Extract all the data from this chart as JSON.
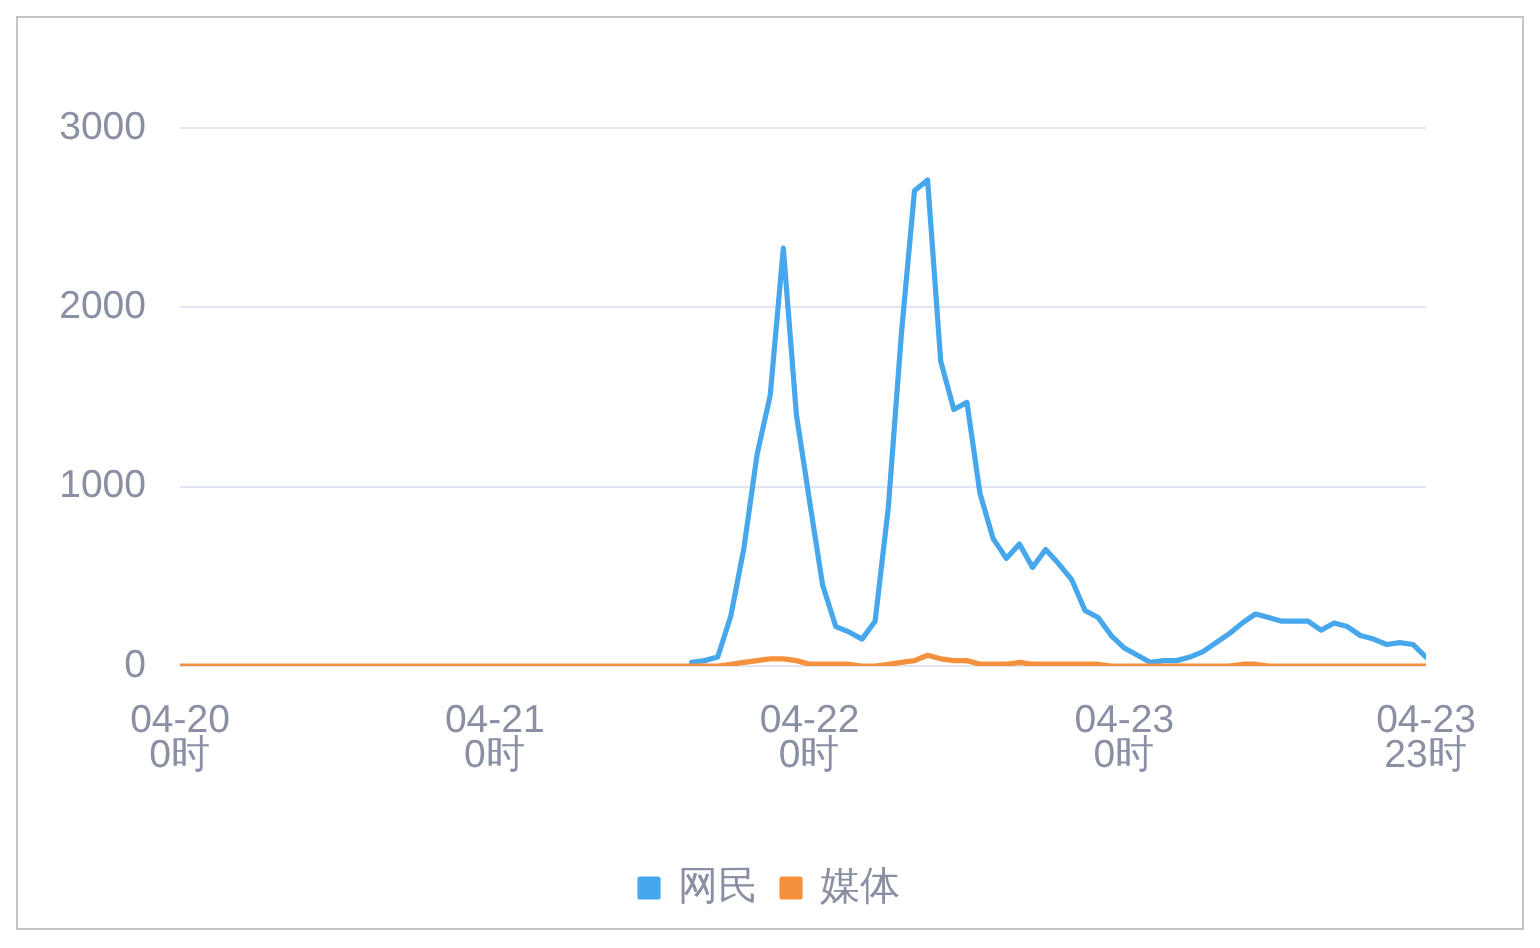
{
  "chart_data": {
    "type": "line",
    "categories": [
      "04-20\n0时",
      null,
      null,
      null,
      null,
      null,
      null,
      null,
      null,
      null,
      null,
      null,
      null,
      null,
      null,
      null,
      null,
      null,
      null,
      null,
      null,
      null,
      null,
      null,
      "04-21\n0时",
      null,
      null,
      null,
      null,
      null,
      null,
      null,
      null,
      null,
      null,
      null,
      null,
      null,
      null,
      null,
      null,
      null,
      null,
      null,
      null,
      null,
      null,
      null,
      "04-22\n0时",
      null,
      null,
      null,
      null,
      null,
      null,
      null,
      null,
      null,
      null,
      null,
      null,
      null,
      null,
      null,
      null,
      null,
      null,
      null,
      null,
      null,
      null,
      null,
      "04-23\n0时",
      null,
      null,
      null,
      null,
      null,
      null,
      null,
      null,
      null,
      null,
      null,
      null,
      null,
      null,
      null,
      null,
      null,
      null,
      null,
      null,
      null,
      null,
      "04-23\n23时"
    ],
    "series": [
      {
        "name": "网民",
        "color": "#46a7ec",
        "values": [
          null,
          null,
          null,
          null,
          null,
          null,
          null,
          null,
          null,
          null,
          null,
          null,
          null,
          null,
          null,
          null,
          null,
          null,
          null,
          null,
          null,
          null,
          null,
          null,
          null,
          null,
          null,
          null,
          null,
          null,
          null,
          null,
          null,
          null,
          null,
          null,
          null,
          null,
          null,
          20,
          30,
          50,
          280,
          660,
          1180,
          1510,
          2330,
          1400,
          920,
          450,
          220,
          190,
          150,
          250,
          880,
          1850,
          2650,
          2710,
          1700,
          1430,
          1470,
          960,
          710,
          600,
          680,
          550,
          650,
          570,
          480,
          310,
          270,
          170,
          100,
          60,
          20,
          30,
          30,
          50,
          80,
          130,
          180,
          240,
          290,
          270,
          250,
          250,
          250,
          200,
          240,
          220,
          170,
          150,
          120,
          130,
          120,
          50
        ]
      },
      {
        "name": "媒体",
        "color": "#f5913c",
        "values": [
          0,
          0,
          0,
          0,
          0,
          0,
          0,
          0,
          0,
          0,
          0,
          0,
          0,
          0,
          0,
          0,
          0,
          0,
          0,
          0,
          0,
          0,
          0,
          0,
          0,
          0,
          0,
          0,
          0,
          0,
          0,
          0,
          0,
          0,
          0,
          0,
          0,
          0,
          0,
          0,
          0,
          0,
          10,
          20,
          30,
          40,
          40,
          30,
          10,
          10,
          10,
          10,
          0,
          0,
          10,
          20,
          30,
          60,
          40,
          30,
          30,
          10,
          10,
          10,
          20,
          10,
          10,
          10,
          10,
          10,
          10,
          0,
          0,
          0,
          0,
          0,
          0,
          0,
          0,
          0,
          0,
          10,
          10,
          0,
          0,
          0,
          0,
          0,
          0,
          0,
          0,
          0,
          0,
          0,
          0,
          0
        ]
      }
    ],
    "ylim": [
      0,
      3000
    ],
    "yticks": [
      0,
      1000,
      2000,
      3000
    ],
    "grid": "y",
    "legend": "bottom",
    "marker": "none"
  }
}
